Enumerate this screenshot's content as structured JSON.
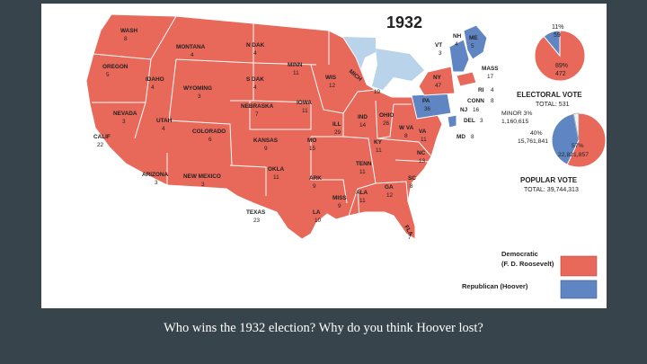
{
  "map": {
    "year": "1932",
    "colors": {
      "democratic": "#e8685a",
      "republican": "#5f86c2",
      "water": "#b9d4ea",
      "border": "#ffffff"
    },
    "states": [
      {
        "abbr": "WASH",
        "ev": "8"
      },
      {
        "abbr": "OREGON",
        "ev": "5"
      },
      {
        "abbr": "CALIF",
        "ev": "22"
      },
      {
        "abbr": "NEVADA",
        "ev": "3"
      },
      {
        "abbr": "IDAHO",
        "ev": "4"
      },
      {
        "abbr": "MONTANA",
        "ev": "4"
      },
      {
        "abbr": "WYOMING",
        "ev": "3"
      },
      {
        "abbr": "UTAH",
        "ev": "4"
      },
      {
        "abbr": "ARIZONA",
        "ev": "3"
      },
      {
        "abbr": "COLORADO",
        "ev": "6"
      },
      {
        "abbr": "NEW MEXICO",
        "ev": "3"
      },
      {
        "abbr": "N DAK",
        "ev": "4"
      },
      {
        "abbr": "S DAK",
        "ev": "4"
      },
      {
        "abbr": "NEBRASKA",
        "ev": "7"
      },
      {
        "abbr": "KANSAS",
        "ev": "9"
      },
      {
        "abbr": "OKLA",
        "ev": "11"
      },
      {
        "abbr": "TEXAS",
        "ev": "23"
      },
      {
        "abbr": "MINN",
        "ev": "11"
      },
      {
        "abbr": "IOWA",
        "ev": "11"
      },
      {
        "abbr": "MO",
        "ev": "15"
      },
      {
        "abbr": "ARK",
        "ev": "9"
      },
      {
        "abbr": "LA",
        "ev": "10"
      },
      {
        "abbr": "WIS",
        "ev": "12"
      },
      {
        "abbr": "ILL",
        "ev": "29"
      },
      {
        "abbr": "MICH",
        "ev": "19"
      },
      {
        "abbr": "IND",
        "ev": "14"
      },
      {
        "abbr": "OHIO",
        "ev": "26"
      },
      {
        "abbr": "KY",
        "ev": "11"
      },
      {
        "abbr": "TENN",
        "ev": "11"
      },
      {
        "abbr": "MISS",
        "ev": "9"
      },
      {
        "abbr": "ALA",
        "ev": "11"
      },
      {
        "abbr": "GA",
        "ev": "12"
      },
      {
        "abbr": "FLA",
        "ev": "7"
      },
      {
        "abbr": "SC",
        "ev": "8"
      },
      {
        "abbr": "NC",
        "ev": "13"
      },
      {
        "abbr": "VA",
        "ev": "11"
      },
      {
        "abbr": "W VA",
        "ev": "8"
      },
      {
        "abbr": "PA",
        "ev": "36"
      },
      {
        "abbr": "NY",
        "ev": "47"
      },
      {
        "abbr": "VT",
        "ev": "3"
      },
      {
        "abbr": "NH",
        "ev": "4"
      },
      {
        "abbr": "ME",
        "ev": "5"
      },
      {
        "abbr": "MASS",
        "ev": "17"
      },
      {
        "abbr": "RI",
        "ev": "4"
      },
      {
        "abbr": "CONN",
        "ev": "8"
      },
      {
        "abbr": "NJ",
        "ev": "16"
      },
      {
        "abbr": "DEL",
        "ev": "3"
      },
      {
        "abbr": "MD",
        "ev": "8"
      }
    ]
  },
  "electoral": {
    "rep_pct": "11%",
    "rep_votes": "59",
    "dem_pct": "89%",
    "dem_votes": "472",
    "title": "ELECTORAL VOTE",
    "total": "TOTAL: 531",
    "rep_fraction": 0.11
  },
  "popular": {
    "minor_label": "MINOR 3%",
    "minor_votes": "1,160,615",
    "rep_pct": "40%",
    "rep_votes": "15,761,841",
    "dem_pct": "57%",
    "dem_votes": "22,821,857",
    "title": "POPULAR VOTE",
    "total": "TOTAL: 39,744,313",
    "dem_fraction": 0.57,
    "rep_fraction": 0.4,
    "minor_fraction": 0.03
  },
  "legend": {
    "democratic_line1": "Democratic",
    "democratic_line2": "(F. D. Roosevelt)",
    "republican": "Republican (Hoover)"
  },
  "caption": "Who wins the 1932 election? Why do you think Hoover lost?"
}
